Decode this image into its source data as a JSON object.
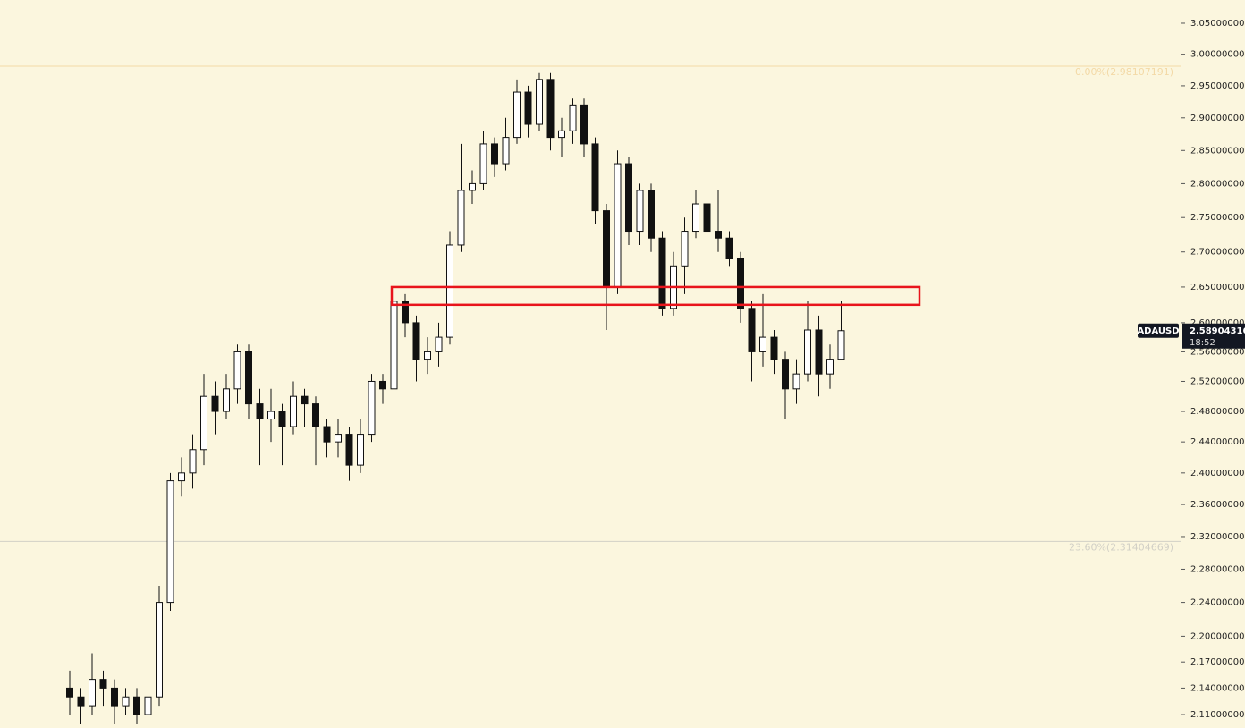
{
  "chart_data": {
    "type": "candlestick",
    "symbol": "ADAUSD",
    "last_price": 2.58904316,
    "countdown": "18:52",
    "log_scale": true,
    "ylim": [
      2.095,
      3.088
    ],
    "yticks": [
      {
        "value": 3.05,
        "label": "3.05000000"
      },
      {
        "value": 3.0,
        "label": "3.00000000"
      },
      {
        "value": 2.95,
        "label": "2.95000000"
      },
      {
        "value": 2.9,
        "label": "2.90000000"
      },
      {
        "value": 2.85,
        "label": "2.85000000"
      },
      {
        "value": 2.8,
        "label": "2.80000000"
      },
      {
        "value": 2.75,
        "label": "2.75000000"
      },
      {
        "value": 2.7,
        "label": "2.70000000"
      },
      {
        "value": 2.65,
        "label": "2.65000000"
      },
      {
        "value": 2.6,
        "label": "2.60000000"
      },
      {
        "value": 2.56,
        "label": "2.56000000"
      },
      {
        "value": 2.52,
        "label": "2.52000000"
      },
      {
        "value": 2.48,
        "label": "2.48000000"
      },
      {
        "value": 2.44,
        "label": "2.44000000"
      },
      {
        "value": 2.4,
        "label": "2.40000000"
      },
      {
        "value": 2.36,
        "label": "2.36000000"
      },
      {
        "value": 2.32,
        "label": "2.32000000"
      },
      {
        "value": 2.28,
        "label": "2.28000000"
      },
      {
        "value": 2.24,
        "label": "2.24000000"
      },
      {
        "value": 2.2,
        "label": "2.20000000"
      },
      {
        "value": 2.17,
        "label": "2.17000000"
      },
      {
        "value": 2.14,
        "label": "2.14000000"
      },
      {
        "value": 2.11,
        "label": "2.11000000"
      }
    ],
    "fib_levels": [
      {
        "value": 2.98107191,
        "label": "0.00%(2.98107191)",
        "color": "#f3d9a6"
      },
      {
        "value": 2.31404669,
        "label": "23.60%(2.31404669)",
        "color": "#d2d0c6"
      }
    ],
    "zone": {
      "x": [
        28.8,
        76
      ],
      "y": [
        2.625,
        2.65
      ],
      "color": "#e8141b"
    },
    "candles": {
      "open": [
        2.14,
        2.13,
        2.12,
        2.15,
        2.14,
        2.12,
        2.13,
        2.11,
        2.13,
        2.24,
        2.39,
        2.4,
        2.43,
        2.5,
        2.48,
        2.51,
        2.56,
        2.49,
        2.47,
        2.48,
        2.46,
        2.5,
        2.49,
        2.46,
        2.44,
        2.45,
        2.41,
        2.45,
        2.52,
        2.51,
        2.63,
        2.6,
        2.55,
        2.56,
        2.58,
        2.71,
        2.79,
        2.8,
        2.86,
        2.83,
        2.87,
        2.94,
        2.89,
        2.96,
        2.87,
        2.88,
        2.92,
        2.86,
        2.76,
        2.65,
        2.83,
        2.73,
        2.79,
        2.72,
        2.62,
        2.68,
        2.73,
        2.77,
        2.73,
        2.72,
        2.69,
        2.62,
        2.56,
        2.58,
        2.55,
        2.51,
        2.53,
        2.59,
        2.53,
        2.55
      ],
      "high": [
        2.16,
        2.14,
        2.18,
        2.16,
        2.15,
        2.14,
        2.14,
        2.14,
        2.26,
        2.4,
        2.42,
        2.45,
        2.53,
        2.52,
        2.53,
        2.57,
        2.57,
        2.51,
        2.51,
        2.49,
        2.52,
        2.51,
        2.5,
        2.47,
        2.47,
        2.46,
        2.47,
        2.53,
        2.53,
        2.65,
        2.64,
        2.61,
        2.58,
        2.6,
        2.73,
        2.86,
        2.82,
        2.88,
        2.87,
        2.9,
        2.96,
        2.95,
        2.97,
        2.97,
        2.9,
        2.93,
        2.93,
        2.87,
        2.77,
        2.85,
        2.84,
        2.8,
        2.8,
        2.73,
        2.7,
        2.75,
        2.79,
        2.78,
        2.79,
        2.73,
        2.7,
        2.63,
        2.64,
        2.59,
        2.56,
        2.55,
        2.63,
        2.61,
        2.57,
        2.63
      ],
      "low": [
        2.11,
        2.1,
        2.11,
        2.12,
        2.1,
        2.11,
        2.1,
        2.1,
        2.12,
        2.23,
        2.37,
        2.38,
        2.41,
        2.45,
        2.47,
        2.49,
        2.47,
        2.41,
        2.44,
        2.41,
        2.45,
        2.46,
        2.41,
        2.42,
        2.42,
        2.39,
        2.4,
        2.44,
        2.49,
        2.5,
        2.58,
        2.52,
        2.53,
        2.54,
        2.57,
        2.7,
        2.77,
        2.79,
        2.81,
        2.82,
        2.86,
        2.87,
        2.88,
        2.85,
        2.84,
        2.86,
        2.84,
        2.74,
        2.59,
        2.64,
        2.71,
        2.71,
        2.7,
        2.61,
        2.61,
        2.64,
        2.72,
        2.71,
        2.7,
        2.68,
        2.6,
        2.52,
        2.54,
        2.53,
        2.47,
        2.49,
        2.52,
        2.5,
        2.51,
        2.57
      ],
      "close": [
        2.13,
        2.12,
        2.15,
        2.14,
        2.12,
        2.13,
        2.11,
        2.13,
        2.24,
        2.39,
        2.4,
        2.43,
        2.5,
        2.48,
        2.51,
        2.56,
        2.49,
        2.47,
        2.48,
        2.46,
        2.5,
        2.49,
        2.46,
        2.44,
        2.45,
        2.41,
        2.45,
        2.52,
        2.51,
        2.63,
        2.6,
        2.55,
        2.56,
        2.58,
        2.71,
        2.79,
        2.8,
        2.86,
        2.83,
        2.87,
        2.94,
        2.89,
        2.96,
        2.87,
        2.88,
        2.92,
        2.86,
        2.76,
        2.65,
        2.83,
        2.73,
        2.79,
        2.72,
        2.62,
        2.68,
        2.73,
        2.77,
        2.73,
        2.72,
        2.69,
        2.62,
        2.56,
        2.58,
        2.55,
        2.51,
        2.53,
        2.59,
        2.53,
        2.55,
        2.58904316
      ]
    }
  }
}
